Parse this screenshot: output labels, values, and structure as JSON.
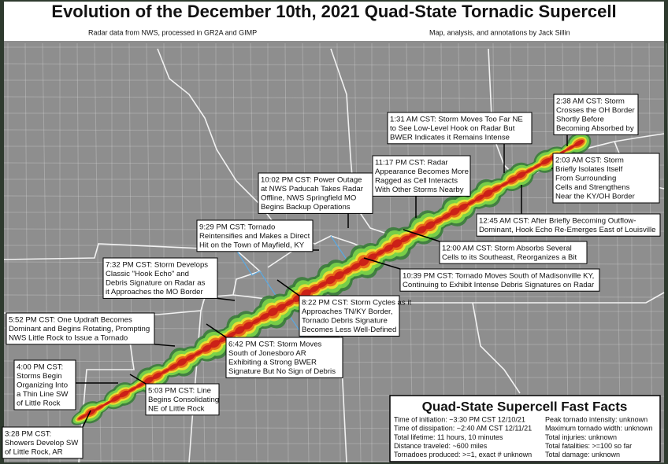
{
  "header": {
    "title": "Evolution of the December 10th, 2021 Quad-State Tornadic Supercell",
    "credit_left": "Radar data from NWS, processed in GR2A and GIMP",
    "credit_right": "Map, analysis, and annotations by Jack Sillin"
  },
  "annotations": [
    {
      "lines": [
        "3:28 PM CST:",
        "Showers Develop SW",
        "of Little Rock, AR"
      ]
    },
    {
      "lines": [
        "4:00 PM CST:",
        "Storms Begin",
        "Organizing Into",
        "a Thin Line SW",
        "of Little Rock"
      ]
    },
    {
      "lines": [
        "5:03 PM CST: Line",
        "Begins Consolidating",
        "NE of Little Rock"
      ]
    },
    {
      "lines": [
        "5:52 PM CST: One Updraft Becomes",
        "Dominant and Begins Rotating, Prompting",
        "NWS Little Rock to Issue a Tornado"
      ]
    },
    {
      "lines": [
        "6:42 PM CST: Storm Moves",
        "South of Jonesboro AR",
        "Exhibiting a Strong BWER",
        "Signature But No Sign of Debris"
      ]
    },
    {
      "lines": [
        "7:32 PM CST: Storm Develops",
        "Classic \"Hook Echo\" and",
        "Debris Signature on Radar as",
        "it Approaches the MO Border"
      ]
    },
    {
      "lines": [
        "8:22 PM CST: Storm Cycles as it",
        "Approaches TN/KY Border,",
        "Tornado Debris Signature",
        "Becomes Less Well-Defined"
      ]
    },
    {
      "lines": [
        "9:29 PM CST: Tornado",
        "Reintensifies and Makes a Direct",
        "Hit on the Town of Mayfield, KY"
      ]
    },
    {
      "lines": [
        "10:02 PM CST: Power Outage",
        "at NWS Paducah Takes Radar",
        "Offline, NWS Springfield MO",
        "Begins Backup Operations"
      ]
    },
    {
      "lines": [
        "10:39 PM CST: Tornado Moves South of Madisonville KY,",
        "Continuing to Exhibit Intense Debris Signatures on Radar"
      ]
    },
    {
      "lines": [
        "11:17 PM CST: Radar",
        "Appearance Becomes More",
        "Ragged as Cell Interacts",
        "With Other Storms Nearby"
      ]
    },
    {
      "lines": [
        "12:00 AM CST: Storm Absorbs Several",
        "Cells to its Southeast, Reorganizes a Bit"
      ]
    },
    {
      "lines": [
        "12:45 AM CST: After Briefly Becoming Outflow-",
        "Dominant, Hook Echo Re-Emerges East of Louisville"
      ]
    },
    {
      "lines": [
        "1:31 AM CST: Storm Moves Too Far NE",
        "to See Low-Level Hook on Radar But",
        "BWER Indicates it Remains Intense"
      ]
    },
    {
      "lines": [
        "2:03 AM CST: Storm",
        "Briefly Isolates Itself",
        "From Surrounding",
        "Cells and Strengthens",
        "Near the KY/OH Border"
      ]
    },
    {
      "lines": [
        "2:38 AM CST: Storm",
        "Crosses the OH Border",
        "Shortly Before",
        "Becoming Absorbed by"
      ]
    }
  ],
  "facts": {
    "title": "Quad-State Supercell Fast Facts",
    "left": [
      "Time of initiation: ~3:30 PM CST 12/10/21",
      "Time of dissipation: ~2:40 AM CST 12/11/21",
      "Total lifetime: 11 hours, 10 minutes",
      "Distance traveled: ~600 miles",
      "Tornadoes produced: >=1, exact # unknown"
    ],
    "right": [
      "Peak tornado intensity: unknown",
      "Maximum tornado width: unknown",
      "Total injuries: unknown",
      "Total fatalities: >=100 so far",
      "Total damage: unknown"
    ]
  }
}
